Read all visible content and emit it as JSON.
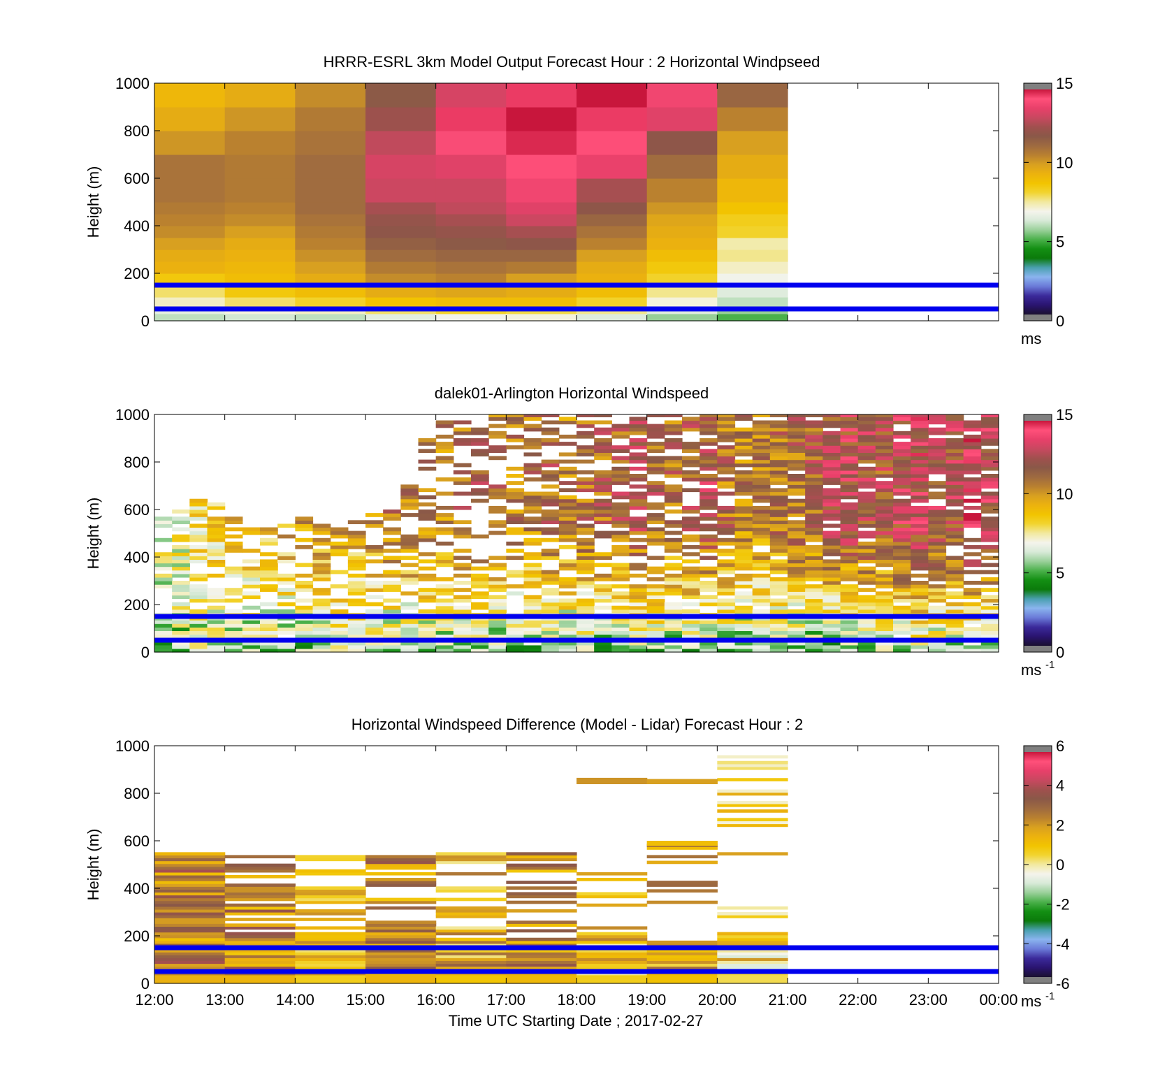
{
  "figure": {
    "xlabel": "Time UTC  Starting Date ; 2017-02-27"
  },
  "colors": {
    "reference_line": "#0000ee",
    "colormap": [
      "#1a1030",
      "#2a1470",
      "#3b2a9a",
      "#6a7ad8",
      "#8ab4ee",
      "#4aa0b0",
      "#0b7a0b",
      "#138f13",
      "#4ab04a",
      "#9ad09a",
      "#d8ead8",
      "#f4f4ec",
      "#f2e9a0",
      "#f2d430",
      "#f2c400",
      "#ecb20e",
      "#d8a020",
      "#b98030",
      "#9e6a40",
      "#8a5848",
      "#a0504e",
      "#c84860",
      "#e8406a",
      "#ff507a",
      "#c8163c"
    ]
  },
  "chart_data": [
    {
      "type": "heatmap",
      "panel": "model",
      "title": "HRRR-ESRL 3km Model Output   Forecast Hour : 2 Horizontal Windpseed",
      "ylabel": "Height (m)",
      "x_ticks": [
        "12:00",
        "13:00",
        "14:00",
        "15:00",
        "16:00",
        "17:00",
        "18:00",
        "19:00",
        "20:00",
        "21:00",
        "22:00",
        "23:00",
        "00:00"
      ],
      "show_x_tick_labels": false,
      "y_ticks": [
        "0",
        "200",
        "400",
        "600",
        "800",
        "1000"
      ],
      "xlim": [
        12,
        24
      ],
      "ylim": [
        0,
        1000
      ],
      "reference_heights": [
        150,
        50
      ],
      "colorbar": {
        "range": [
          0,
          15
        ],
        "ticks": [
          "0",
          "5",
          "10",
          "15"
        ],
        "unit": "ms",
        "unit_sup": ""
      },
      "grid": "model",
      "hours": [
        12,
        13,
        14,
        15,
        16,
        17,
        18,
        19,
        20
      ],
      "levels": [
        0,
        30,
        60,
        100,
        150,
        200,
        250,
        300,
        350,
        400,
        450,
        500,
        600,
        700,
        800,
        900,
        1000
      ],
      "values": [
        [
          6.0,
          6.5,
          7.2,
          7.8,
          8.6,
          9.4,
          9.6,
          10.0,
          10.4,
          10.6,
          10.8,
          11.0,
          11.0,
          10.2,
          9.6,
          9.2
        ],
        [
          6.2,
          7.0,
          7.8,
          8.6,
          9.0,
          9.2,
          9.4,
          9.6,
          10.0,
          10.4,
          10.6,
          10.8,
          10.8,
          10.6,
          10.2,
          9.6
        ],
        [
          6.0,
          7.2,
          8.2,
          9.0,
          9.6,
          10.0,
          10.3,
          10.6,
          10.8,
          11.0,
          11.2,
          11.2,
          11.2,
          11.0,
          10.8,
          10.4
        ],
        [
          6.5,
          7.8,
          8.8,
          9.6,
          10.4,
          10.8,
          11.2,
          11.6,
          12.0,
          12.2,
          12.6,
          13.2,
          13.4,
          13.0,
          12.4,
          11.8
        ],
        [
          6.8,
          8.2,
          9.0,
          9.8,
          10.6,
          11.0,
          11.4,
          11.8,
          12.2,
          12.6,
          13.0,
          13.2,
          13.6,
          14.2,
          14.6,
          13.4
        ],
        [
          7.0,
          8.0,
          9.0,
          9.6,
          10.0,
          10.8,
          11.4,
          12.0,
          12.6,
          13.2,
          13.6,
          14.0,
          14.4,
          14.8,
          15.0,
          14.6
        ],
        [
          6.4,
          7.6,
          8.2,
          9.0,
          9.4,
          9.6,
          10.0,
          10.6,
          11.0,
          11.4,
          12.0,
          12.6,
          13.8,
          14.4,
          14.6,
          15.4
        ],
        [
          5.6,
          6.4,
          7.0,
          7.6,
          8.2,
          8.6,
          9.0,
          9.4,
          9.6,
          9.8,
          10.2,
          10.6,
          11.2,
          12.0,
          13.6,
          14.0
        ],
        [
          5.0,
          5.6,
          6.0,
          6.4,
          6.8,
          7.2,
          7.6,
          7.4,
          8.2,
          8.4,
          8.8,
          9.2,
          9.6,
          10.0,
          10.6,
          11.4
        ]
      ]
    },
    {
      "type": "heatmap",
      "panel": "lidar",
      "title": "dalek01-Arlington  Horizontal Windspeed",
      "ylabel": "Height (m)",
      "x_ticks": [
        "12:00",
        "13:00",
        "14:00",
        "15:00",
        "16:00",
        "17:00",
        "18:00",
        "19:00",
        "20:00",
        "21:00",
        "22:00",
        "23:00",
        "00:00"
      ],
      "show_x_tick_labels": false,
      "y_ticks": [
        "0",
        "200",
        "400",
        "600",
        "800",
        "1000"
      ],
      "xlim": [
        12,
        24
      ],
      "ylim": [
        0,
        1000
      ],
      "reference_heights": [
        150,
        50
      ],
      "colorbar": {
        "range": [
          0,
          15
        ],
        "ticks": [
          "0",
          "5",
          "10",
          "15"
        ],
        "unit": "ms",
        "unit_sup": "-1"
      },
      "grid": "lidar",
      "time_step_hours": 0.25,
      "height_step_m": 15,
      "time_range": [
        12.0,
        23.75
      ],
      "data_top_m": [
        560,
        600,
        640,
        620,
        560,
        540,
        540,
        530,
        560,
        540,
        540,
        560,
        580,
        620,
        700,
        900,
        1000,
        1000,
        1000,
        1000,
        1000,
        1000,
        1000,
        1000,
        1000,
        1000,
        1000,
        1000,
        1000,
        1000,
        1000,
        1000,
        1000,
        1000,
        1000,
        1000,
        1000,
        1000,
        1000,
        1000,
        1000,
        1000,
        1000,
        1000,
        1000,
        1000,
        1000,
        1000
      ],
      "surface_mean": [
        5.6,
        5.8,
        6.0,
        5.8,
        5.6,
        5.6,
        5.7,
        5.5,
        5.4,
        5.6,
        5.8,
        5.8,
        5.5,
        5.2,
        5.0,
        5.1,
        5.2,
        5.0,
        5.3,
        5.1,
        4.9,
        4.8,
        4.9,
        5.2,
        5.4,
        5.1,
        5.4,
        5.6,
        5.5,
        5.0,
        5.2,
        5.4,
        5.2,
        5.0,
        4.8,
        5.1,
        4.9,
        4.8,
        4.8,
        5.0,
        5.4,
        5.6,
        5.8,
        5.9,
        5.6,
        5.5,
        5.6,
        5.4
      ],
      "aloft_mean": [
        7.0,
        7.2,
        8.0,
        8.4,
        8.8,
        9.0,
        9.2,
        9.6,
        10.0,
        10.4,
        10.2,
        10.0,
        10.4,
        10.8,
        11.2,
        11.0,
        10.8,
        11.4,
        11.6,
        11.2,
        10.8,
        11.0,
        11.4,
        10.8,
        11.2,
        11.4,
        11.8,
        12.0,
        11.6,
        11.4,
        11.8,
        12.2,
        11.2,
        10.8,
        10.6,
        11.0,
        11.4,
        11.8,
        12.2,
        12.6,
        12.4,
        12.0,
        12.6,
        13.0,
        12.6,
        12.4,
        13.6,
        12.8
      ],
      "gap_probability": [
        0.25,
        0.28,
        0.3,
        0.32,
        0.3,
        0.3,
        0.35,
        0.35,
        0.35,
        0.32,
        0.35,
        0.35,
        0.4,
        0.45,
        0.45,
        0.5,
        0.55,
        0.55,
        0.55,
        0.5,
        0.4,
        0.35,
        0.35,
        0.3,
        0.3,
        0.3,
        0.3,
        0.3,
        0.3,
        0.3,
        0.3,
        0.25,
        0.1,
        0.1,
        0.1,
        0.08,
        0.08,
        0.08,
        0.08,
        0.08,
        0.08,
        0.08,
        0.08,
        0.08,
        0.08,
        0.08,
        0.35,
        0.15
      ]
    },
    {
      "type": "heatmap",
      "panel": "difference",
      "title": "Horizontal Windspeed Difference (Model - Lidar) Forecast Hour : 2",
      "ylabel": "Height (m)",
      "x_ticks": [
        "12:00",
        "13:00",
        "14:00",
        "15:00",
        "16:00",
        "17:00",
        "18:00",
        "19:00",
        "20:00",
        "21:00",
        "22:00",
        "23:00",
        "00:00"
      ],
      "show_x_tick_labels": true,
      "y_ticks": [
        "0",
        "200",
        "400",
        "600",
        "800",
        "1000"
      ],
      "xlim": [
        12,
        24
      ],
      "ylim": [
        0,
        1000
      ],
      "reference_heights": [
        150,
        50
      ],
      "colorbar": {
        "range": [
          -6,
          6
        ],
        "ticks": [
          "-6",
          "-4",
          "-2",
          "0",
          "2",
          "4",
          "6"
        ],
        "unit": "ms",
        "unit_sup": "-1"
      },
      "grid": "difference",
      "hours": [
        12,
        13,
        14,
        15,
        16,
        17,
        18,
        19,
        20
      ],
      "height_step_m": 12,
      "data_top_m": [
        550,
        540,
        550,
        550,
        550,
        550,
        480,
        610,
        1000
      ],
      "mean_difference": [
        2.6,
        2.4,
        1.2,
        2.4,
        1.6,
        2.2,
        1.2,
        1.8,
        0.6
      ],
      "gap_probability": [
        0.05,
        0.35,
        0.45,
        0.35,
        0.45,
        0.4,
        0.65,
        0.75,
        0.5
      ],
      "isolated_bands": [
        {
          "hour": 18,
          "from_m": 840,
          "to_m": 865,
          "value": 2.2
        },
        {
          "hour": 19,
          "from_m": 840,
          "to_m": 860,
          "value": 2.0
        },
        {
          "hour": 19,
          "from_m": 580,
          "to_m": 600,
          "value": 1.2
        }
      ]
    }
  ]
}
